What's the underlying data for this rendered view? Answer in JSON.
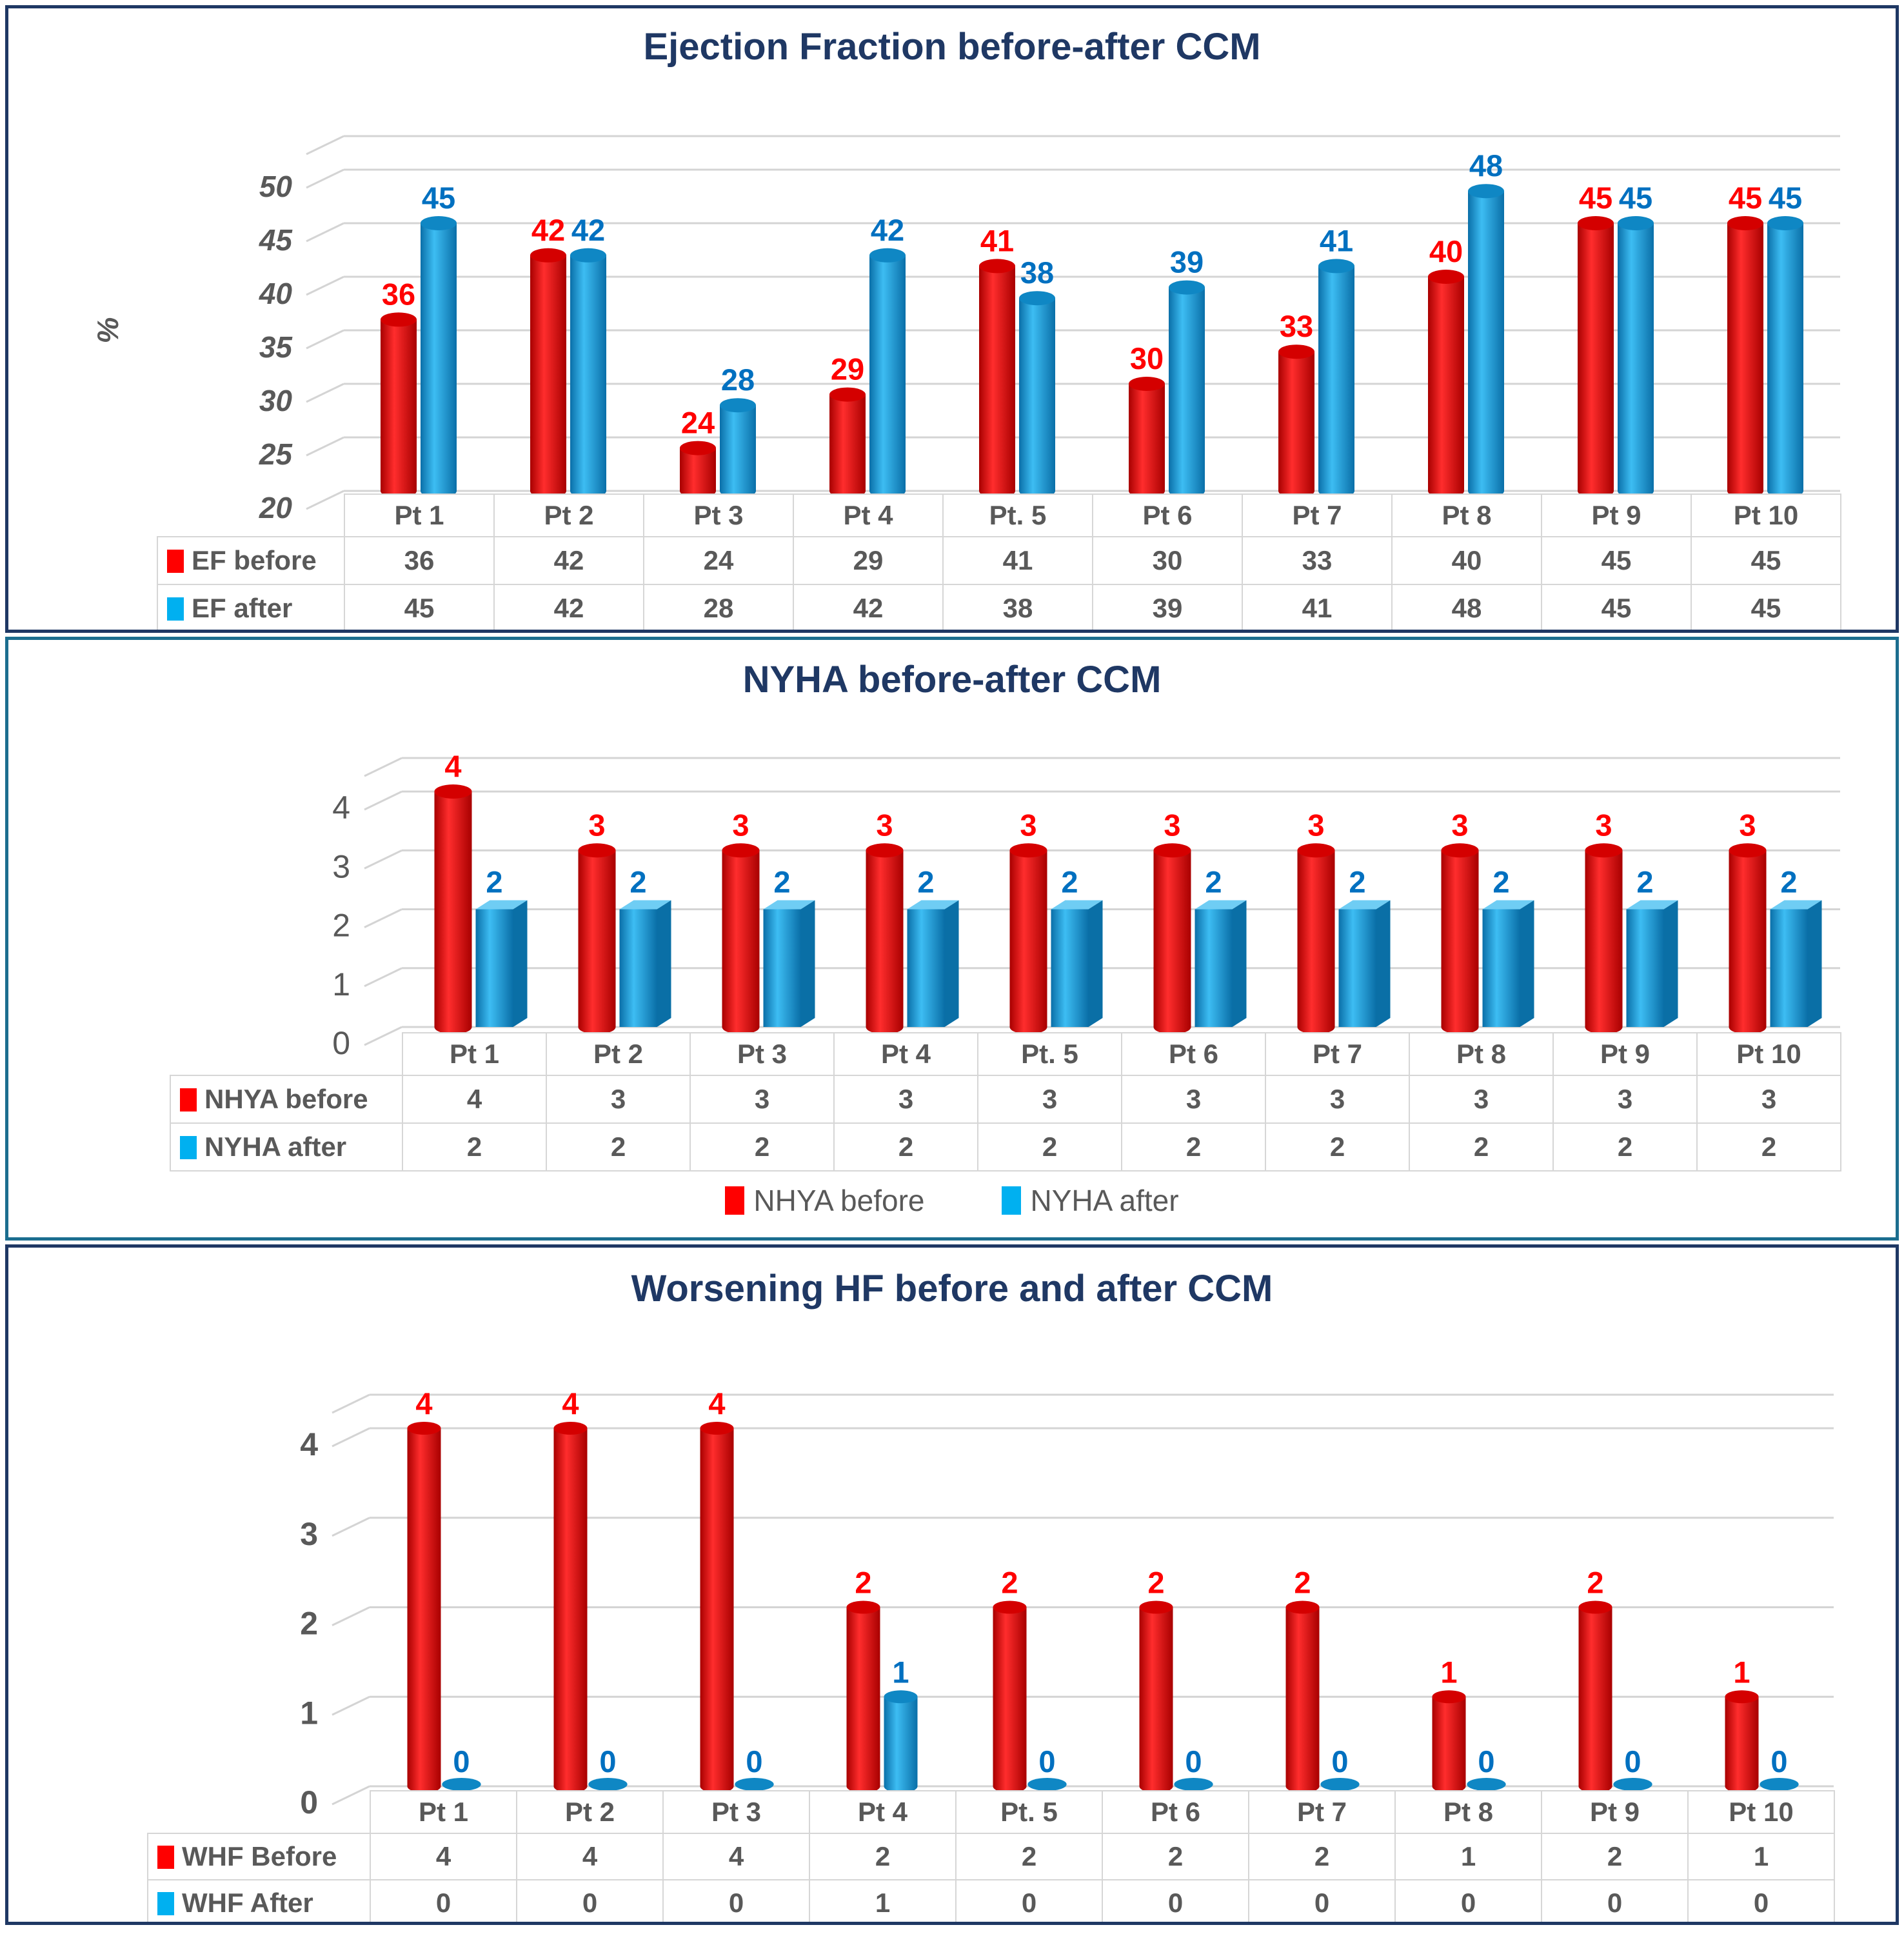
{
  "panels": [
    {
      "name": "ejection-fraction-panel",
      "border_color": "#1F3864"
    },
    {
      "name": "nyha-panel",
      "border_color": "#1C6E8F"
    },
    {
      "name": "worsening-hf-panel",
      "border_color": "#1F3864"
    }
  ],
  "chart_data": [
    {
      "type": "bar",
      "title": "Ejection Fraction before-after CCM",
      "categories": [
        "Pt 1",
        "Pt 2",
        "Pt 3",
        "Pt 4",
        "Pt. 5",
        "Pt 6",
        "Pt 7",
        "Pt 8",
        "Pt 9",
        "Pt 10"
      ],
      "series": [
        {
          "name": "EF before",
          "values": [
            36,
            42,
            24,
            29,
            41,
            30,
            33,
            40,
            45,
            45
          ],
          "color": "#FF0000",
          "color_dark": "#A80000",
          "color_light": "#FF2D2D",
          "cap_color": "#D40000",
          "label_color": "#FF0000"
        },
        {
          "name": "EF after",
          "values": [
            45,
            42,
            28,
            42,
            38,
            39,
            41,
            48,
            45,
            45
          ],
          "color": "#00B0F0",
          "color_dark": "#0A6FA8",
          "color_light": "#3DBDF3",
          "cap_color": "#0F87C4",
          "label_color": "#0070C0"
        }
      ],
      "xlabel": "",
      "ylabel": "%",
      "ylim": [
        20,
        50
      ],
      "yticks": [
        20,
        25,
        30,
        35,
        40,
        45,
        50
      ],
      "grid": true,
      "legend": null,
      "table": true,
      "tick_color": "#595959",
      "grid_color": "#D4D4D4"
    },
    {
      "type": "bar",
      "title": "NYHA before-after CCM",
      "categories": [
        "Pt 1",
        "Pt 2",
        "Pt 3",
        "Pt 4",
        "Pt. 5",
        "Pt 6",
        "Pt 7",
        "Pt 8",
        "Pt 9",
        "Pt 10"
      ],
      "series": [
        {
          "name": "NHYA before",
          "values": [
            4,
            3,
            3,
            3,
            3,
            3,
            3,
            3,
            3,
            3
          ],
          "color": "#FF0000",
          "color_dark": "#A80000",
          "color_light": "#FF2D2D",
          "cap_color": "#D40000",
          "label_color": "#FF0000"
        },
        {
          "name": "NYHA after",
          "values": [
            2,
            2,
            2,
            2,
            2,
            2,
            2,
            2,
            2,
            2
          ],
          "color": "#00B0F0",
          "color_dark": "#0A6FA8",
          "color_light": "#3DBDF3",
          "cap_color": "#0F87C4",
          "label_color": "#0070C0",
          "top_color": "#6FCDF4",
          "side_color": "#0A6FA6"
        }
      ],
      "xlabel": "",
      "ylabel": "",
      "ylim": [
        0,
        4
      ],
      "yticks": [
        0,
        1,
        2,
        3,
        4
      ],
      "grid": true,
      "legend": [
        "NHYA before",
        "NYHA after"
      ],
      "table": true,
      "tick_color": "#595959",
      "grid_color": "#D4D4D4"
    },
    {
      "type": "bar",
      "title": "Worsening HF before and after CCM",
      "categories": [
        "Pt 1",
        "Pt 2",
        "Pt 3",
        "Pt 4",
        "Pt. 5",
        "Pt 6",
        "Pt 7",
        "Pt 8",
        "Pt 9",
        "Pt 10"
      ],
      "series": [
        {
          "name": "WHF Before",
          "values": [
            4,
            4,
            4,
            2,
            2,
            2,
            2,
            1,
            2,
            1
          ],
          "color": "#FF0000",
          "color_dark": "#A80000",
          "color_light": "#FF2D2D",
          "cap_color": "#D40000",
          "label_color": "#FF0000"
        },
        {
          "name": "WHF After",
          "values": [
            0,
            0,
            0,
            1,
            0,
            0,
            0,
            0,
            0,
            0
          ],
          "color": "#00B0F0",
          "color_dark": "#0A6FA8",
          "color_light": "#3DBDF3",
          "cap_color": "#0F87C4",
          "label_color": "#0070C0"
        }
      ],
      "xlabel": "",
      "ylabel": "",
      "ylim": [
        0,
        4
      ],
      "yticks": [
        0,
        1,
        2,
        3,
        4
      ],
      "grid": true,
      "legend": null,
      "table": true,
      "tick_color": "#595959",
      "grid_color": "#D4D4D4"
    }
  ]
}
